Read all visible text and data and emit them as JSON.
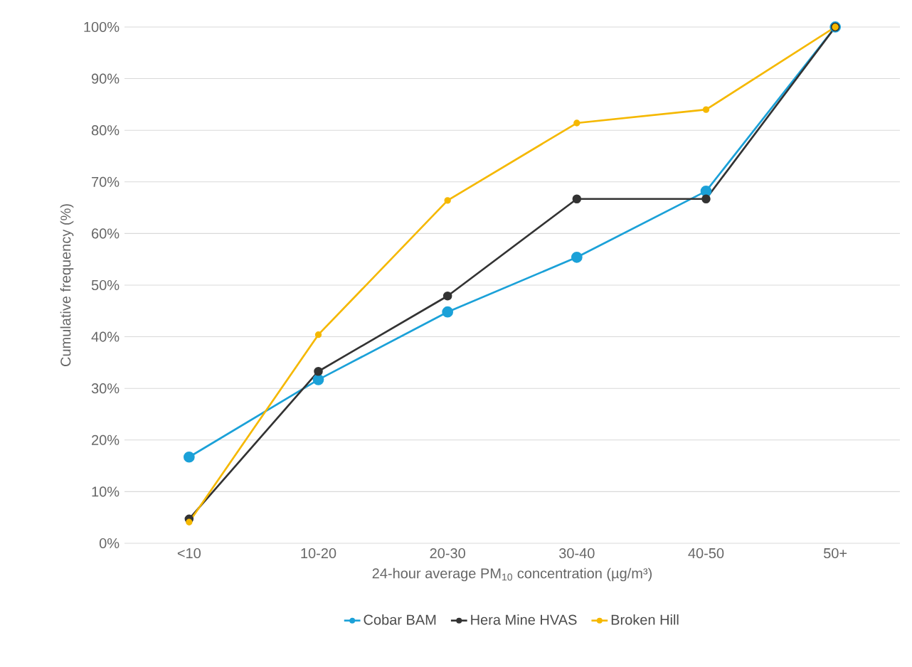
{
  "chart_data": {
    "type": "line",
    "xlabel": "24-hour average PM$_{10}$ concentration (µg/m³)",
    "ylabel": "Cumulative frequency  (%)",
    "categories": [
      "<10",
      "10-20",
      "20-30",
      "30-40",
      "40-50",
      "50+"
    ],
    "series": [
      {
        "name": "Cobar BAM",
        "color": "#1ba1d8",
        "values": [
          16.7,
          31.7,
          44.8,
          55.4,
          68.2,
          100
        ]
      },
      {
        "name": "Hera Mine HVAS",
        "color": "#333333",
        "values": [
          4.7,
          33.3,
          47.9,
          66.7,
          66.7,
          100
        ]
      },
      {
        "name": "Broken Hill",
        "color": "#f5b800",
        "values": [
          4.1,
          40.4,
          66.4,
          81.4,
          84.0,
          100
        ]
      }
    ],
    "ylim": [
      0,
      100
    ],
    "yticks": [
      {
        "value": 0,
        "label": "0%"
      },
      {
        "value": 10,
        "label": "10%"
      },
      {
        "value": 20,
        "label": "20%"
      },
      {
        "value": 30,
        "label": "30%"
      },
      {
        "value": 40,
        "label": "40%"
      },
      {
        "value": 50,
        "label": "50%"
      },
      {
        "value": 60,
        "label": "60%"
      },
      {
        "value": 70,
        "label": "70%"
      },
      {
        "value": 80,
        "label": "80%"
      },
      {
        "value": 90,
        "label": "90%"
      },
      {
        "value": 100,
        "label": "100%"
      }
    ],
    "grid": "y",
    "legend": "bottom",
    "marker": "circle",
    "line_style": "solid"
  }
}
